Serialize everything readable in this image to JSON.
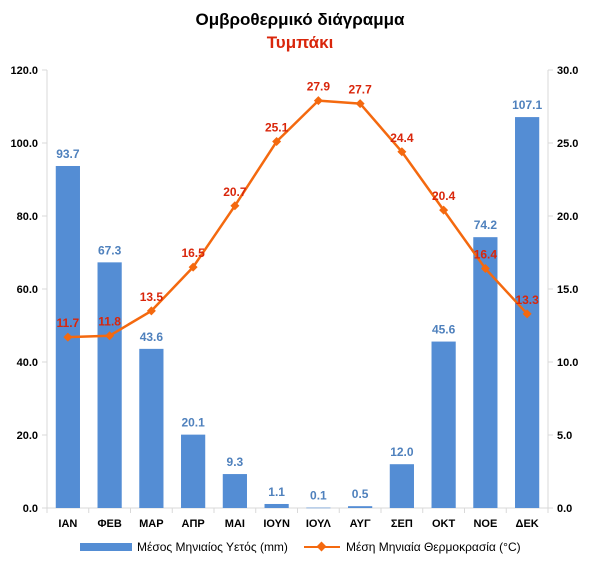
{
  "title": "Ομβροθερμικό διάγραμμα",
  "subtitle": "Τυμπάκι",
  "colors": {
    "bar": "#548dd4",
    "bar_label": "#4f81bd",
    "line": "#f4690f",
    "line_label": "#d9260b",
    "axis": "#d9d9d9",
    "tick_text": "#000000"
  },
  "chart_data": {
    "type": "bar+line",
    "categories": [
      "ΙΑΝ",
      "ΦΕΒ",
      "ΜΑΡ",
      "ΑΠΡ",
      "ΜΑΙ",
      "ΙΟΥΝ",
      "ΙΟΥΛ",
      "ΑΥΓ",
      "ΣΕΠ",
      "ΟΚΤ",
      "ΝΟΕ",
      "ΔΕΚ"
    ],
    "series": [
      {
        "name": "Μέσος Μηνιαίος Υετός (mm)",
        "type": "bar",
        "axis": "left",
        "values": [
          93.7,
          67.3,
          43.6,
          20.1,
          9.3,
          1.1,
          0.1,
          0.5,
          12.0,
          45.6,
          74.2,
          107.1
        ],
        "labels": [
          "93.7",
          "67.3",
          "43.6",
          "20.1",
          "9.3",
          "1.1",
          "0.1",
          "0.5",
          "12.0",
          "45.6",
          "74.2",
          "107.1"
        ]
      },
      {
        "name": "Μέση Μηνιαία Θερμοκρασία (°C)",
        "type": "line",
        "marker": "diamond",
        "axis": "right",
        "values": [
          11.7,
          11.8,
          13.5,
          16.5,
          20.7,
          25.1,
          27.9,
          27.7,
          24.4,
          20.4,
          16.4,
          13.3
        ],
        "labels": [
          "11.7",
          "11.8",
          "13.5",
          "16.5",
          "20.7",
          "25.1",
          "27.9",
          "27.7",
          "24.4",
          "20.4",
          "16.4",
          "13.3"
        ]
      }
    ],
    "y_left": {
      "min": 0,
      "max": 120,
      "ticks": [
        0,
        20,
        40,
        60,
        80,
        100,
        120
      ],
      "tick_labels": [
        "0.0",
        "20.0",
        "40.0",
        "60.0",
        "80.0",
        "100.0",
        "120.0"
      ]
    },
    "y_right": {
      "min": 0,
      "max": 30,
      "ticks": [
        0,
        5,
        10,
        15,
        20,
        25,
        30
      ],
      "tick_labels": [
        "0.0",
        "5.0",
        "10.0",
        "15.0",
        "20.0",
        "25.0",
        "30.0"
      ]
    },
    "grid": false,
    "legend": "bottom"
  }
}
